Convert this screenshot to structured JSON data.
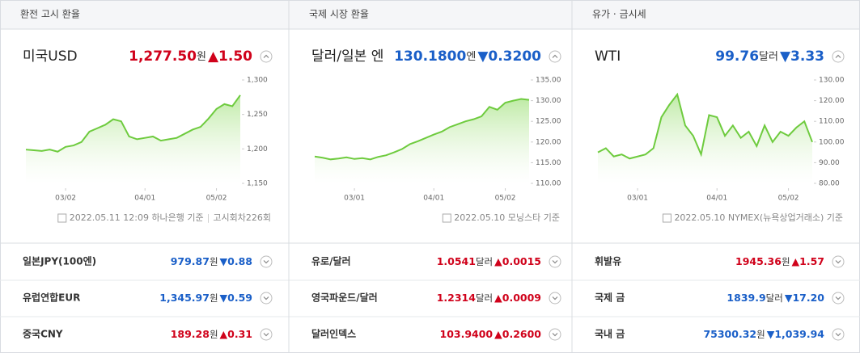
{
  "panels": [
    {
      "header": "환전 고시 환율",
      "title": "미국USD",
      "value": "1,277.50",
      "unit": "원",
      "change": "▲1.50",
      "color": "#d0021b",
      "chart": {
        "type": "line",
        "color": "#6ecb3e",
        "values": [
          1199,
          1198,
          1197,
          1199,
          1196,
          1203,
          1205,
          1210,
          1225,
          1230,
          1235,
          1243,
          1240,
          1218,
          1214,
          1216,
          1218,
          1212,
          1214,
          1216,
          1222,
          1228,
          1232,
          1244,
          1258,
          1265,
          1262,
          1278
        ],
        "ylim": [
          1150,
          1300
        ],
        "yticks": [
          {
            "value": 1150,
            "label": "1,150"
          },
          {
            "value": 1200,
            "label": "1,200"
          },
          {
            "value": 1250,
            "label": "1,250"
          },
          {
            "value": 1300,
            "label": "1,300"
          }
        ],
        "xticks": [
          {
            "value": 5,
            "label": "03/02"
          },
          {
            "value": 15,
            "label": "04/01"
          },
          {
            "value": 24,
            "label": "05/02"
          }
        ]
      },
      "source": [
        "2022.05.11 12:09 하나은행 기준",
        "고시회차226회"
      ],
      "rows": [
        {
          "name": "일본JPY(100엔)",
          "value": "979.87",
          "unit": "원",
          "change": "▼0.88",
          "color": "#1a5fc8"
        },
        {
          "name": "유럽연합EUR",
          "value": "1,345.97",
          "unit": "원",
          "change": "▼0.59",
          "color": "#1a5fc8"
        },
        {
          "name": "중국CNY",
          "value": "189.28",
          "unit": "원",
          "change": "▲0.31",
          "color": "#d0021b"
        }
      ]
    },
    {
      "header": "국제 시장 환율",
      "title": "달러/일본 엔",
      "value": "130.1800",
      "unit": "엔",
      "change": "▼0.3200",
      "color": "#1a5fc8",
      "chart": {
        "type": "line",
        "color": "#6ecb3e",
        "values": [
          116.5,
          116.2,
          115.8,
          116,
          116.3,
          115.9,
          116.1,
          115.8,
          116.4,
          116.8,
          117.5,
          118.3,
          119.5,
          120.2,
          121,
          121.8,
          122.5,
          123.6,
          124.3,
          125,
          125.5,
          126.2,
          128.5,
          127.8,
          129.5,
          130,
          130.4,
          130.2
        ],
        "ylim": [
          110,
          135
        ],
        "yticks": [
          {
            "value": 110,
            "label": "110.00"
          },
          {
            "value": 115,
            "label": "115.00"
          },
          {
            "value": 120,
            "label": "120.00"
          },
          {
            "value": 125,
            "label": "125.00"
          },
          {
            "value": 130,
            "label": "130.00"
          },
          {
            "value": 135,
            "label": "135.00"
          }
        ],
        "xticks": [
          {
            "value": 5,
            "label": "03/01"
          },
          {
            "value": 15,
            "label": "04/01"
          },
          {
            "value": 24,
            "label": "05/02"
          }
        ]
      },
      "source": [
        "2022.05.10 모닝스타 기준"
      ],
      "rows": [
        {
          "name": "유로/달러",
          "value": "1.0541",
          "unit": "달러",
          "change": "▲0.0015",
          "color": "#d0021b"
        },
        {
          "name": "영국파운드/달러",
          "value": "1.2314",
          "unit": "달러",
          "change": "▲0.0009",
          "color": "#d0021b"
        },
        {
          "name": "달러인덱스",
          "value": "103.9400",
          "change": "▲0.2600",
          "color": "#d0021b"
        }
      ]
    },
    {
      "header": "유가 · 금시세",
      "title": "WTI",
      "value": "99.76",
      "unit": "달러",
      "change": "▼3.33",
      "color": "#1a5fc8",
      "chart": {
        "type": "line",
        "color": "#6ecb3e",
        "values": [
          95,
          97,
          93,
          94,
          92,
          93,
          94,
          97,
          112,
          118,
          123,
          108,
          103,
          94,
          113,
          112,
          103,
          108,
          102,
          105,
          98,
          108,
          100,
          105,
          103,
          107,
          110,
          100
        ],
        "ylim": [
          80,
          130
        ],
        "yticks": [
          {
            "value": 80,
            "label": "80.00"
          },
          {
            "value": 90,
            "label": "90.00"
          },
          {
            "value": 100,
            "label": "100.00"
          },
          {
            "value": 110,
            "label": "110.00"
          },
          {
            "value": 120,
            "label": "120.00"
          },
          {
            "value": 130,
            "label": "130.00"
          }
        ],
        "xticks": [
          {
            "value": 5,
            "label": "03/01"
          },
          {
            "value": 15,
            "label": "04/01"
          },
          {
            "value": 24,
            "label": "05/02"
          }
        ]
      },
      "source": [
        "2022.05.10 NYMEX(뉴욕상업거래소) 기준"
      ],
      "rows": [
        {
          "name": "휘발유",
          "value": "1945.36",
          "unit": "원",
          "change": "▲1.57",
          "color": "#d0021b"
        },
        {
          "name": "국제 금",
          "value": "1839.9",
          "unit": "달러",
          "change": "▼17.20",
          "color": "#1a5fc8"
        },
        {
          "name": "국내 금",
          "value": "75300.32",
          "unit": "원",
          "change": "▼1,039.94",
          "color": "#1a5fc8"
        }
      ]
    }
  ]
}
